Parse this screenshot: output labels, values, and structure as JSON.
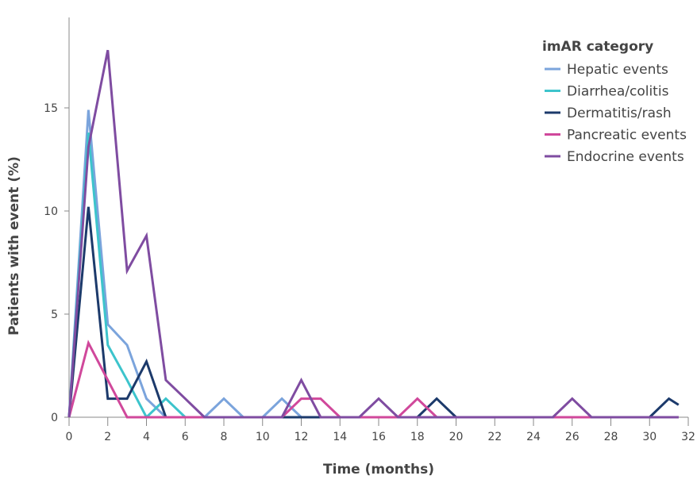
{
  "chart_data": {
    "type": "line",
    "xlabel": "Time (months)",
    "ylabel": "Patients with event (%)",
    "xlim": [
      0,
      32
    ],
    "ylim": [
      0,
      18
    ],
    "xticks": [
      0,
      2,
      4,
      6,
      8,
      10,
      12,
      14,
      16,
      18,
      20,
      22,
      24,
      26,
      28,
      30,
      32
    ],
    "yticks": [
      0,
      5,
      10,
      15
    ],
    "grid": false,
    "legend_title": "imAR category",
    "legend_position": "top-right",
    "series": [
      {
        "name": "Hepatic events",
        "color": "#7ba4dc",
        "x": [
          0,
          1,
          2,
          3,
          4,
          5,
          6,
          7,
          8,
          9,
          10,
          11,
          12,
          13,
          14,
          15,
          16,
          17,
          18,
          19,
          20,
          21,
          22,
          23,
          24,
          25,
          26,
          27,
          28,
          29,
          30,
          31,
          31.5
        ],
        "y": [
          0,
          14.9,
          4.5,
          3.5,
          0.9,
          0,
          0,
          0,
          0.9,
          0,
          0,
          0.9,
          0,
          0,
          0,
          0,
          0,
          0,
          0,
          0,
          0,
          0,
          0,
          0,
          0,
          0,
          0,
          0,
          0,
          0,
          0,
          0,
          0
        ]
      },
      {
        "name": "Diarrhea/colitis",
        "color": "#3dc4cc",
        "x": [
          0,
          1,
          2,
          3,
          4,
          5,
          6,
          7,
          8,
          9,
          10,
          11,
          12,
          13,
          14,
          15,
          16,
          17,
          18,
          19,
          20,
          21,
          22,
          23,
          24,
          25,
          26,
          27,
          28,
          29,
          30,
          31,
          31.5
        ],
        "y": [
          0,
          13.8,
          3.5,
          1.8,
          0,
          0.9,
          0,
          0,
          0,
          0,
          0,
          0,
          0,
          0,
          0,
          0,
          0,
          0,
          0,
          0,
          0,
          0,
          0,
          0,
          0,
          0,
          0,
          0,
          0,
          0,
          0,
          0,
          0
        ]
      },
      {
        "name": "Dermatitis/rash",
        "color": "#1c3a6b",
        "x": [
          0,
          1,
          2,
          3,
          4,
          5,
          6,
          7,
          8,
          9,
          10,
          11,
          12,
          13,
          14,
          15,
          16,
          17,
          18,
          19,
          20,
          21,
          22,
          23,
          24,
          25,
          26,
          27,
          28,
          29,
          30,
          31,
          31.5
        ],
        "y": [
          0,
          10.2,
          0.9,
          0.9,
          2.7,
          0,
          0,
          0,
          0,
          0,
          0,
          0,
          0,
          0,
          0,
          0,
          0,
          0,
          0,
          0.9,
          0,
          0,
          0,
          0,
          0,
          0,
          0,
          0,
          0,
          0,
          0,
          0.9,
          0.6
        ]
      },
      {
        "name": "Pancreatic events",
        "color": "#d0489b",
        "x": [
          0,
          1,
          2,
          3,
          4,
          5,
          6,
          7,
          8,
          9,
          10,
          11,
          12,
          13,
          14,
          15,
          16,
          17,
          18,
          19,
          20,
          21,
          22,
          23,
          24,
          25,
          26,
          27,
          28,
          29,
          30,
          31,
          31.5
        ],
        "y": [
          0,
          3.6,
          1.8,
          0,
          0,
          0,
          0,
          0,
          0,
          0,
          0,
          0,
          0.9,
          0.9,
          0,
          0,
          0,
          0,
          0.9,
          0,
          0,
          0,
          0,
          0,
          0,
          0,
          0,
          0,
          0,
          0,
          0,
          0,
          0
        ]
      },
      {
        "name": "Endocrine events",
        "color": "#7f4ca1",
        "x": [
          0,
          1,
          2,
          3,
          4,
          5,
          6,
          7,
          8,
          9,
          10,
          11,
          12,
          13,
          14,
          15,
          16,
          17,
          18,
          19,
          20,
          21,
          22,
          23,
          24,
          25,
          26,
          27,
          28,
          29,
          30,
          31,
          31.5
        ],
        "y": [
          0,
          13.1,
          17.8,
          7.1,
          8.8,
          1.8,
          0.9,
          0,
          0,
          0,
          0,
          0,
          1.8,
          0,
          0,
          0,
          0.9,
          0,
          0,
          0,
          0,
          0,
          0,
          0,
          0,
          0,
          0.9,
          0,
          0,
          0,
          0,
          0,
          0
        ]
      }
    ]
  }
}
